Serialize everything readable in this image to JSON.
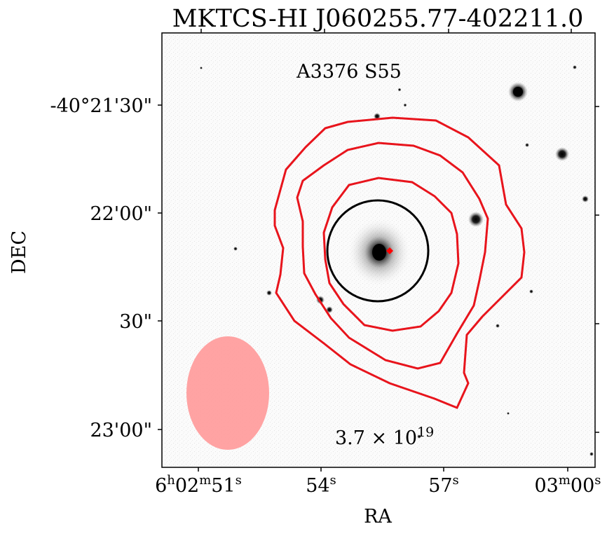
{
  "chart_data": {
    "type": "contour",
    "title": "MKTCS-HI J060255.77-402211.0",
    "target_label": "A3376 S55",
    "contour_label_base": "3.7 × 10",
    "contour_label_exp": "19",
    "xlabel": "RA",
    "ylabel": "DEC",
    "x_ticks": [
      {
        "main": "6",
        "sup1": "h",
        "mid": "02",
        "sup2": "m",
        "end": "51",
        "sup3": "s"
      },
      {
        "main": "54",
        "sup1": "s"
      },
      {
        "main": "57",
        "sup1": "s"
      },
      {
        "main": "03",
        "sup1": "m",
        "mid": "00",
        "sup2": "s"
      }
    ],
    "y_ticks": [
      "-40°21'30\"",
      "22'00\"",
      "30\"",
      "23'00\""
    ],
    "background": "grayscale optical image",
    "contour_color": "#e8141c",
    "aperture_color": "#000000",
    "beam_color": "#ff9999",
    "marker_color": "#ff0000"
  }
}
